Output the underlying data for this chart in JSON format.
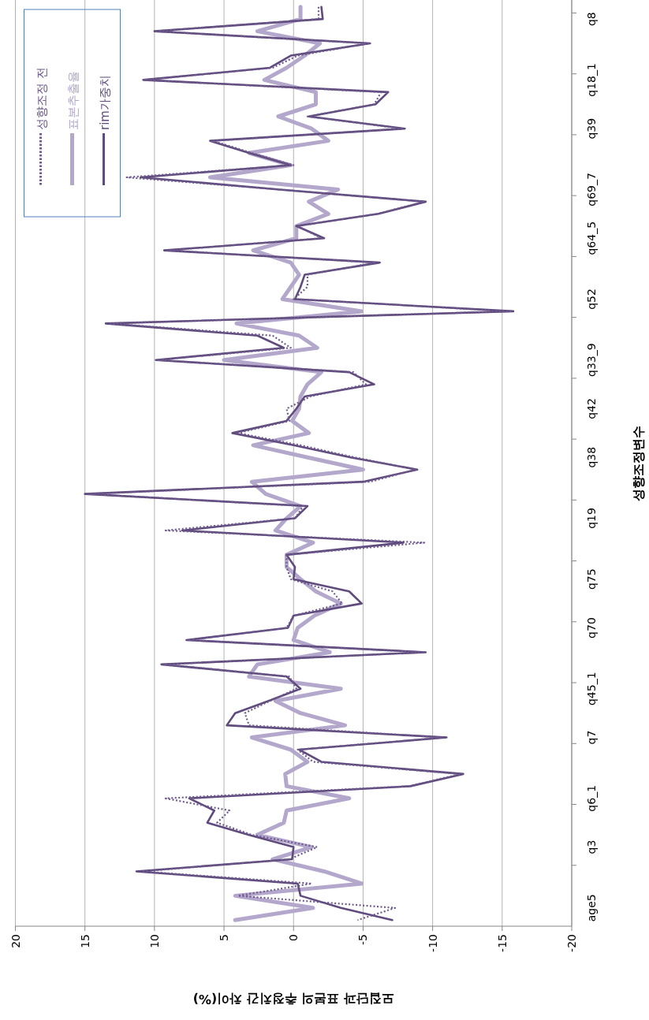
{
  "chart_data": {
    "type": "line",
    "orientation": "horizontal",
    "xlabel": "모집단과 표본의 추정치간 차이(%)",
    "ylabel": "성향조정변수",
    "categories": [
      null,
      "q8",
      null,
      null,
      null,
      null,
      "q18_1",
      null,
      null,
      null,
      "q39",
      null,
      null,
      null,
      null,
      "q69_7",
      null,
      null,
      null,
      "q64_5",
      null,
      null,
      null,
      null,
      "q52",
      null,
      null,
      null,
      null,
      "q33_9",
      null,
      null,
      null,
      "q42",
      null,
      null,
      null,
      "q38",
      null,
      null,
      null,
      null,
      "q19",
      null,
      null,
      null,
      null,
      "q75",
      null,
      null,
      null,
      "q70",
      null,
      null,
      null,
      null,
      "q45_1",
      null,
      null,
      null,
      "q7",
      null,
      null,
      null,
      null,
      "q6_1",
      null,
      null,
      null,
      "q3",
      null,
      null,
      null,
      null,
      "age5",
      null
    ],
    "series": [
      {
        "name": "성향조정 전",
        "color": "#6e5a8c",
        "line_style": "dotted",
        "values": [
          -1.8,
          -1.8,
          10.0,
          -5.4,
          -0.3,
          1.5,
          10.8,
          -6.3,
          -5.8,
          -1.0,
          -7.8,
          5.8,
          3.0,
          0.0,
          12.0,
          1.0,
          -9.4,
          -6.0,
          -0.3,
          -2.0,
          9.1,
          -5.9,
          -1.0,
          -1.0,
          0.0,
          -15.6,
          13.3,
          1.5,
          0.2,
          9.8,
          -4.3,
          -5.2,
          -1.2,
          0.5,
          0.3,
          4.0,
          -0.5,
          -4.4,
          -8.8,
          -5.5,
          14.8,
          -0.7,
          -0.1,
          9.2,
          -9.4,
          0.5,
          0.5,
          0.2,
          -2.8,
          -3.5,
          0.0,
          0.5,
          7.6,
          -9.4,
          9.3,
          0.3,
          -0.2,
          1.7,
          3.5,
          3.2,
          -10.8,
          -0.3,
          -1.4,
          -12.0,
          -8.3,
          9.2,
          4.6,
          5.5,
          3.0,
          -1.7,
          0.3,
          10.9,
          -1.3,
          4.0,
          -7.3,
          -4.6
        ]
      },
      {
        "name": "표본추출율",
        "color": "#b4a7cc",
        "line_style": "solid",
        "values": [
          -0.5,
          -0.5,
          2.6,
          -1.9,
          -0.8,
          0.5,
          2.1,
          -1.6,
          -1.6,
          1.1,
          -1.3,
          -2.5,
          3.2,
          0.2,
          6.0,
          -3.2,
          -1.1,
          -2.5,
          -0.2,
          -0.2,
          2.9,
          0.2,
          -0.4,
          0.2,
          0.8,
          -4.9,
          4.1,
          -0.4,
          -1.7,
          5.0,
          -2.0,
          -1.0,
          -0.5,
          -0.4,
          0.1,
          -1.1,
          2.9,
          -1.0,
          -5.0,
          3.0,
          2.0,
          -0.5,
          0.5,
          1.3,
          -1.4,
          0.5,
          0.5,
          -0.5,
          -1.6,
          -3.4,
          -1.5,
          -0.3,
          0.0,
          -2.6,
          2.6,
          3.2,
          -3.4,
          1.3,
          -0.5,
          -3.7,
          3.0,
          0.2,
          -1.0,
          0.6,
          0.5,
          -4.0,
          0.5,
          0.7,
          2.6,
          -1.3,
          1.5,
          -2.2,
          -4.9,
          4.2,
          -1.4,
          4.2
        ]
      },
      {
        "name": "rim가중치",
        "color": "#5f4b7d",
        "line_style": "solid",
        "values": [
          -2.0,
          -2.1,
          10.0,
          -5.5,
          0.2,
          1.7,
          10.8,
          -6.8,
          -5.9,
          -1.1,
          -8.0,
          6.0,
          3.2,
          0.2,
          11.0,
          1.0,
          -9.5,
          -6.1,
          -0.2,
          -2.2,
          9.3,
          -6.2,
          -0.8,
          -0.5,
          -0.1,
          -15.8,
          13.5,
          2.6,
          0.7,
          9.9,
          -4.0,
          -5.8,
          -0.8,
          -0.2,
          0.5,
          4.4,
          0.0,
          -4.1,
          -8.9,
          -5.0,
          15.0,
          -1.0,
          -0.1,
          8.0,
          -7.9,
          0.5,
          -0.1,
          0.0,
          -4.0,
          -4.9,
          0.0,
          0.4,
          7.7,
          -9.5,
          9.5,
          0.5,
          -0.5,
          1.8,
          4.2,
          4.8,
          -11.0,
          -0.4,
          -2.0,
          -12.2,
          -8.4,
          7.5,
          5.7,
          6.2,
          3.2,
          0.0,
          0.1,
          11.3,
          -0.3,
          -0.5,
          -3.4,
          -7.1
        ]
      }
    ],
    "xlim": [
      20,
      -20
    ],
    "xticks": [
      20,
      15,
      10,
      5,
      0,
      -5,
      -10,
      -15,
      -20
    ],
    "grid": "x",
    "legend": "top left",
    "marker": "none"
  }
}
